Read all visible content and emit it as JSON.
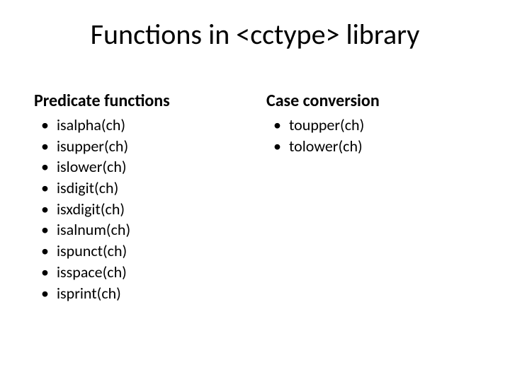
{
  "slide": {
    "title": "Functions in <cctype> library",
    "title_fontsize": 40,
    "background_color": "#ffffff",
    "text_color": "#000000",
    "layout": "two-column",
    "body_fontsize": 22,
    "heading_fontsize": 24,
    "left": {
      "heading": "Predicate functions",
      "items": [
        "isalpha(ch)",
        "isupper(ch)",
        "islower(ch)",
        "isdigit(ch)",
        "isxdigit(ch)",
        "isalnum(ch)",
        "ispunct(ch)",
        "isspace(ch)",
        "isprint(ch)"
      ]
    },
    "right": {
      "heading": "Case conversion",
      "items": [
        "toupper(ch)",
        "tolower(ch)"
      ]
    }
  }
}
